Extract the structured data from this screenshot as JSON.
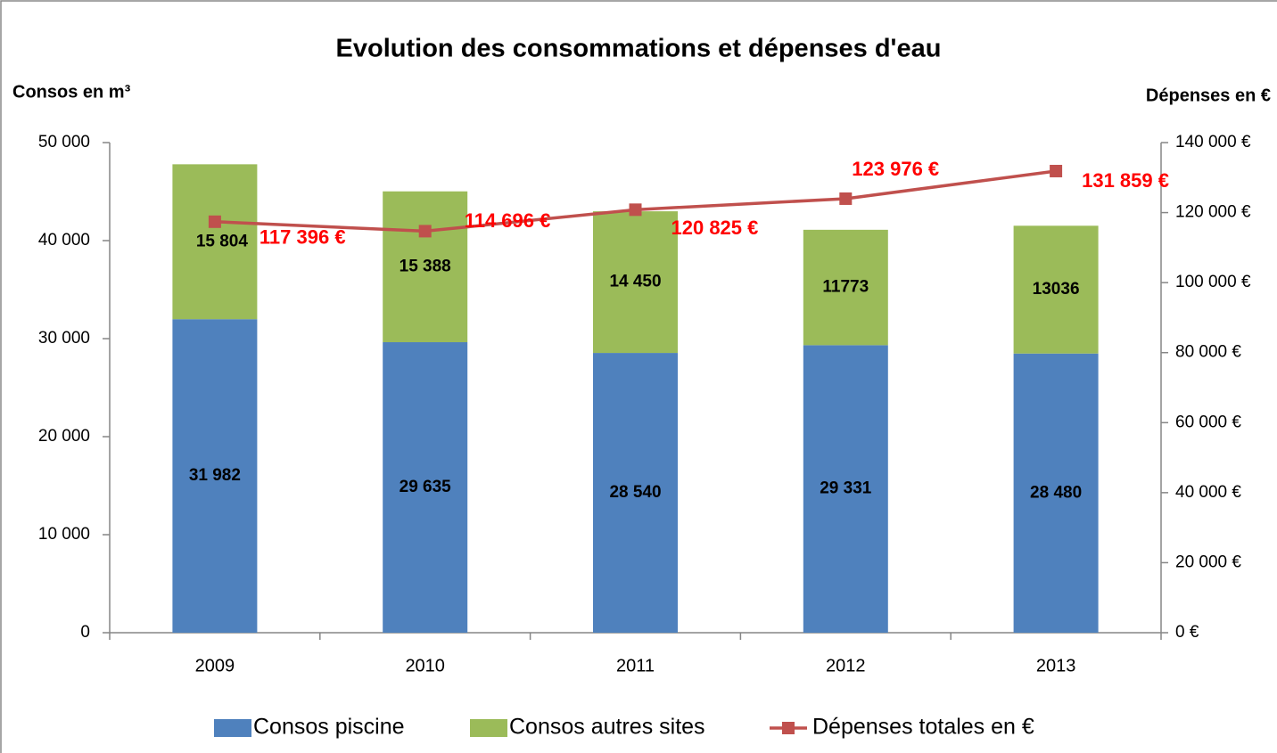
{
  "chart_data": {
    "type": "bar",
    "title": "Evolution des consommations et dépenses d'eau",
    "ylabel": "Consos en m³",
    "y2label": "Dépenses en €",
    "categories": [
      "2009",
      "2010",
      "2011",
      "2012",
      "2013"
    ],
    "stacked": true,
    "series": [
      {
        "name": "Consos piscine",
        "color": "#4f81bd",
        "type": "bar",
        "values": [
          31982,
          29635,
          28540,
          29331,
          28480
        ],
        "value_labels": [
          "31 982",
          "29 635",
          "28 540",
          "29 331",
          "28 480"
        ]
      },
      {
        "name": "Consos autres sites",
        "color": "#9bbb59",
        "type": "bar",
        "values": [
          15804,
          15388,
          14450,
          11773,
          13036
        ],
        "value_labels": [
          "15 804",
          "15 388",
          "14 450",
          "11773",
          "13036"
        ]
      },
      {
        "name": "Dépenses totales en €",
        "color": "#c0504d",
        "type": "line",
        "axis": "y2",
        "label_color": "#ff0000",
        "values": [
          117396,
          114696,
          120825,
          123976,
          131859
        ],
        "value_labels": [
          "117 396 €",
          "114 696 €",
          "120 825 €",
          "123 976 €",
          "131 859 €"
        ]
      }
    ],
    "ylim": [
      0,
      50000
    ],
    "yticks": [
      0,
      {
        "value": 10000,
        "label": "10 000"
      },
      {
        "value": 20000,
        "label": "20 000"
      },
      {
        "value": 30000,
        "label": "30 000"
      },
      {
        "value": 40000,
        "label": "40 000"
      },
      {
        "value": 50000,
        "label": "50 000"
      }
    ],
    "y2lim": [
      0,
      140000
    ],
    "y2ticks": [
      {
        "value": 0,
        "label": "0 €"
      },
      {
        "value": 20000,
        "label": "20 000 €"
      },
      {
        "value": 40000,
        "label": "40 000 €"
      },
      {
        "value": 60000,
        "label": "60 000 €"
      },
      {
        "value": 80000,
        "label": "80 000 €"
      },
      {
        "value": 100000,
        "label": "100 000 €"
      },
      {
        "value": 120000,
        "label": "120 000 €"
      },
      {
        "value": 140000,
        "label": "140 000 €"
      }
    ],
    "legend": "bottom"
  }
}
